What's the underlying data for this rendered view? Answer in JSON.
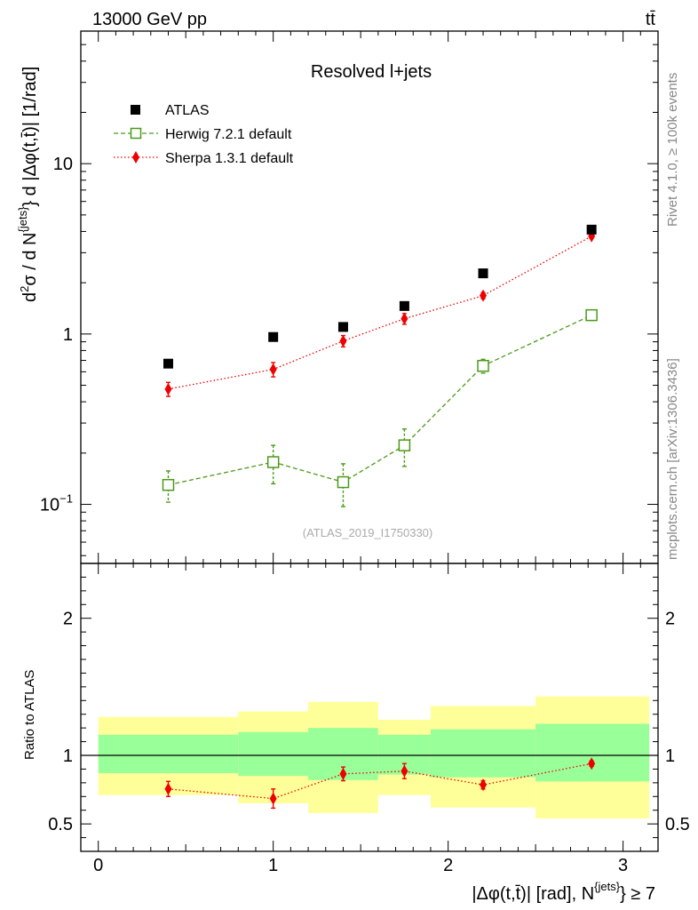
{
  "header": {
    "energy_label": "13000 GeV pp",
    "process_label": "tt̄"
  },
  "sidebar": {
    "rivet_label": "Rivet 4.1.0, ≥ 100k events",
    "mcplots_label": "mcplots.cern.ch [arXiv:1306.3436]"
  },
  "chart_data": [
    {
      "type": "scatter",
      "panel": "main",
      "title": "Resolved l+jets",
      "ylabel": "d²σ / d N^{jets} d |Δφ(t,t̄)| [1/rad]",
      "ylabel_parts": {
        "base": "d",
        "sup2": "2",
        "sigma": "σ / d N",
        "sup_jets": "{jets}",
        "rest": "} d |Δφ(t,t̄)| [1/rad]"
      },
      "xlabel": "",
      "yscale": "log",
      "ylim": [
        0.045,
        60
      ],
      "xlim": [
        -0.1,
        3.2
      ],
      "reference": "(ATLAS_2019_I1750330)",
      "ytick_labels": [
        {
          "value": 0.1,
          "base": "10",
          "exp": "−1"
        },
        {
          "value": 1,
          "base": "1",
          "exp": ""
        },
        {
          "value": 10,
          "base": "10",
          "exp": ""
        }
      ],
      "legend_position": "top-left",
      "series": [
        {
          "name": "ATLAS",
          "color": "#000000",
          "marker": "square-filled",
          "x": [
            0.4,
            1.0,
            1.4,
            1.75,
            2.2,
            2.82
          ],
          "y": [
            0.67,
            0.96,
            1.1,
            1.46,
            2.27,
            4.1
          ]
        },
        {
          "name": "Herwig 7.2.1 default",
          "color": "#4a9a1a",
          "marker": "square-open",
          "line": "dashed",
          "x": [
            0.4,
            1.0,
            1.4,
            1.75,
            2.2,
            2.82
          ],
          "y": [
            0.13,
            0.177,
            0.135,
            0.222,
            0.65,
            1.29
          ],
          "yerr_low": [
            0.027,
            0.045,
            0.038,
            0.055,
            0.06,
            0.03
          ],
          "yerr_high": [
            0.027,
            0.045,
            0.038,
            0.055,
            0.06,
            0.03
          ]
        },
        {
          "name": "Sherpa 1.3.1 default",
          "color": "#ee0000",
          "marker": "diamond-filled",
          "line": "dotted",
          "x": [
            0.4,
            1.0,
            1.4,
            1.75,
            2.2,
            2.82
          ],
          "y": [
            0.475,
            0.62,
            0.91,
            1.23,
            1.68,
            3.75
          ],
          "yerr_low": [
            0.045,
            0.06,
            0.07,
            0.09,
            0.07,
            0.1
          ],
          "yerr_high": [
            0.045,
            0.06,
            0.07,
            0.09,
            0.07,
            0.1
          ]
        }
      ]
    },
    {
      "type": "scatter",
      "panel": "ratio",
      "ylabel": "Ratio to ATLAS",
      "xlabel": "|Δφ(t,t̄)| [rad], N^{jets} ≥ 7",
      "xlabel_parts": {
        "lead": "|Δφ(t,t̄)| [rad], N",
        "sup": "{jets}",
        "tail": "} ≥ 7"
      },
      "ylim": [
        0.3,
        2.4
      ],
      "xlim": [
        -0.1,
        3.2
      ],
      "ytick_labels": [
        "0.5",
        "1",
        "2"
      ],
      "xtick_labels": [
        "0",
        "1",
        "2",
        "3"
      ],
      "reference_line": 1.0,
      "bands": [
        {
          "x_low": 0.0,
          "x_high": 0.8,
          "inner": [
            0.87,
            1.15
          ],
          "outer": [
            0.71,
            1.28
          ]
        },
        {
          "x_low": 0.8,
          "x_high": 1.2,
          "inner": [
            0.85,
            1.17
          ],
          "outer": [
            0.65,
            1.32
          ]
        },
        {
          "x_low": 1.2,
          "x_high": 1.6,
          "inner": [
            0.82,
            1.2
          ],
          "outer": [
            0.58,
            1.39
          ]
        },
        {
          "x_low": 1.6,
          "x_high": 1.9,
          "inner": [
            0.86,
            1.15
          ],
          "outer": [
            0.71,
            1.26
          ]
        },
        {
          "x_low": 1.9,
          "x_high": 2.5,
          "inner": [
            0.84,
            1.19
          ],
          "outer": [
            0.62,
            1.36
          ]
        },
        {
          "x_low": 2.5,
          "x_high": 3.15,
          "inner": [
            0.81,
            1.23
          ],
          "outer": [
            0.54,
            1.43
          ]
        }
      ],
      "inner_band_color": "#99ff99",
      "outer_band_color": "#ffff99",
      "series": [
        {
          "name": "Sherpa 1.3.1 default",
          "color": "#ee0000",
          "marker": "diamond-filled",
          "line": "dotted",
          "x": [
            0.4,
            1.0,
            1.4,
            1.75,
            2.2,
            2.82
          ],
          "y": [
            0.755,
            0.685,
            0.865,
            0.885,
            0.785,
            0.94
          ],
          "yerr_low": [
            0.055,
            0.07,
            0.05,
            0.055,
            0.03,
            0.02
          ],
          "yerr_high": [
            0.055,
            0.07,
            0.05,
            0.055,
            0.03,
            0.02
          ]
        }
      ]
    }
  ]
}
